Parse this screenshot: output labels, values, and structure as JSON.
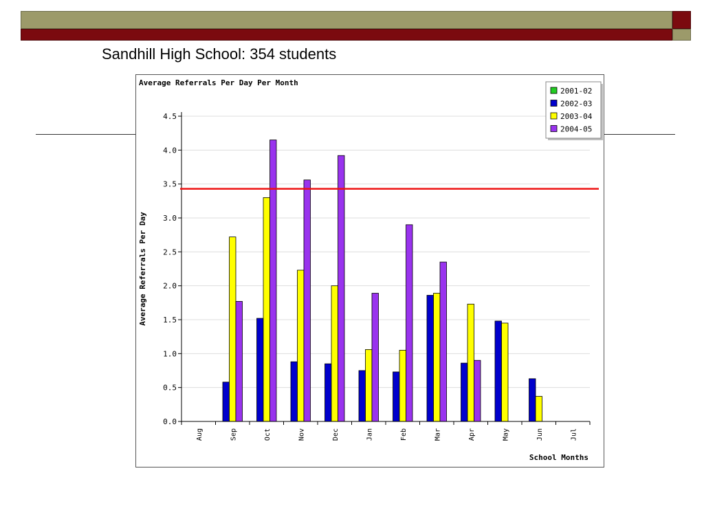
{
  "slide": {
    "title": "Sandhill High School: 354 students"
  },
  "theme": {
    "band_olive": "#9c9a6a",
    "band_maroon": "#7b0a0f"
  },
  "chart_data": {
    "type": "bar",
    "title": "Average Referrals Per Day Per Month",
    "xlabel": "School Months",
    "ylabel": "Average Referrals Per Day",
    "ylim": [
      0,
      4.5
    ],
    "yticks": [
      "0.0",
      "0.5",
      "1.0",
      "1.5",
      "2.0",
      "2.5",
      "3.0",
      "3.5",
      "4.0",
      "4.5"
    ],
    "grid": true,
    "legend_position": "top-right",
    "categories": [
      "Aug",
      "Sep",
      "Oct",
      "Nov",
      "Dec",
      "Jan",
      "Feb",
      "Mar",
      "Apr",
      "May",
      "Jun",
      "Jul"
    ],
    "series": [
      {
        "name": "2001-02",
        "color": "#22cc22",
        "values": [
          null,
          null,
          null,
          null,
          null,
          null,
          null,
          null,
          null,
          null,
          null,
          null
        ]
      },
      {
        "name": "2002-03",
        "color": "#0000cc",
        "values": [
          null,
          0.58,
          1.52,
          0.88,
          0.85,
          0.75,
          0.73,
          1.86,
          0.86,
          1.48,
          0.63,
          null
        ]
      },
      {
        "name": "2003-04",
        "color": "#ffff00",
        "values": [
          null,
          2.72,
          3.3,
          2.23,
          2.0,
          1.06,
          1.05,
          1.89,
          1.73,
          1.45,
          0.37,
          null
        ]
      },
      {
        "name": "2004-05",
        "color": "#9933ee",
        "values": [
          null,
          1.77,
          4.15,
          3.56,
          3.92,
          1.89,
          2.9,
          2.35,
          0.9,
          null,
          null,
          null
        ]
      }
    ],
    "reference_line": {
      "value": 3.43,
      "color": "#ee1111"
    }
  }
}
